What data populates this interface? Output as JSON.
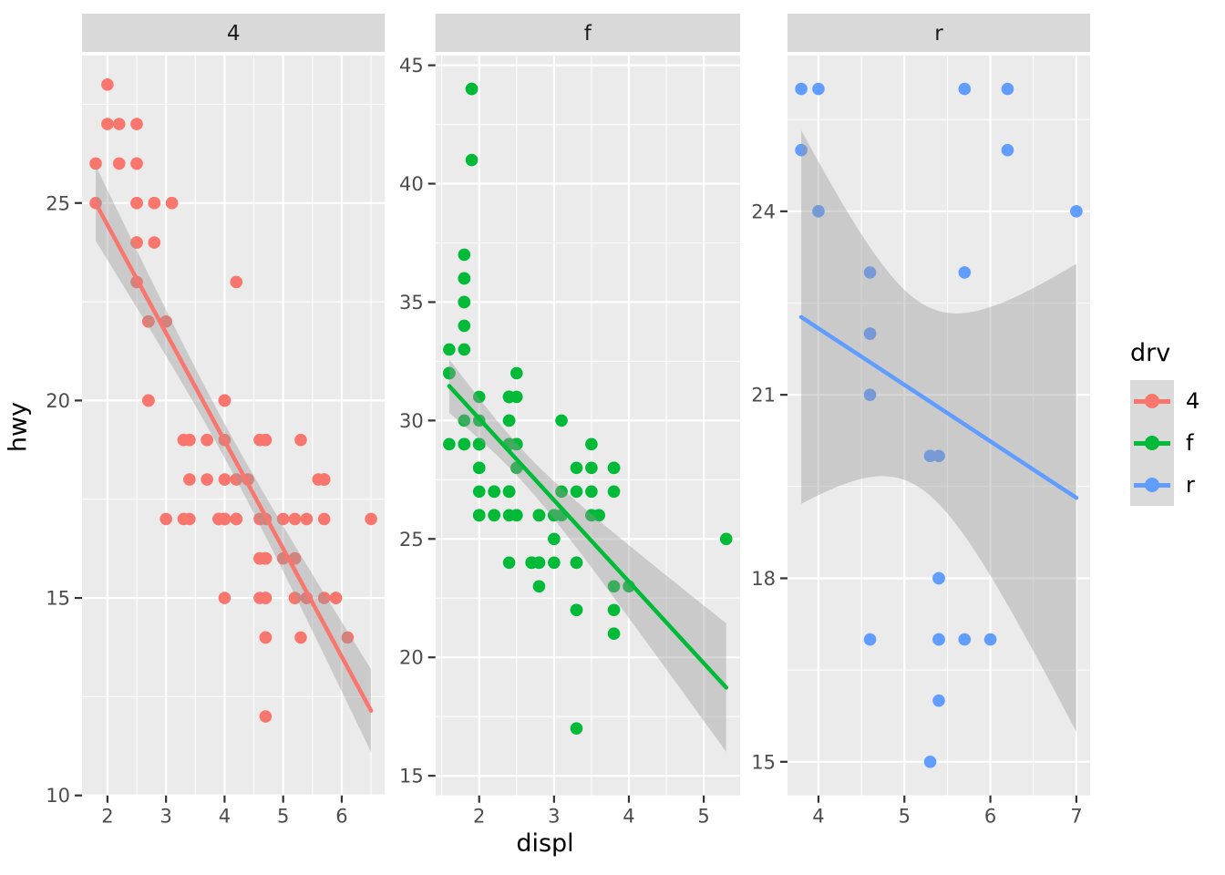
{
  "chart_data": {
    "type": "scatter",
    "description": "ggplot2 faceted scatterplot of engine displacement vs highway mpg with linear smooth and 95% confidence ribbon, faceted by drive type with free scales",
    "xlabel": "displ",
    "ylabel": "hwy",
    "facet_variable": "drv",
    "legend": {
      "title": "drv",
      "position": "right",
      "items": [
        {
          "label": "4",
          "color": "#F8766D"
        },
        {
          "label": "f",
          "color": "#00BA38"
        },
        {
          "label": "r",
          "color": "#619CFF"
        }
      ]
    },
    "theme": {
      "panel_bg": "#EBEBEB",
      "strip_bg": "#D9D9D9",
      "grid_color": "#FFFFFF",
      "ribbon_color": "#999999",
      "ribbon_opacity": 0.4,
      "tick_label_color": "#4D4D4D",
      "strip_text_color": "#1A1A1A",
      "tick_mark_color": "#333333",
      "grid": true
    },
    "facets": [
      {
        "label": "4",
        "color": "#F8766D",
        "smooth": "lm",
        "xlim": [
          1.566,
          6.737
        ],
        "ylim": [
          10.0,
          28.74
        ],
        "xticks": [
          2,
          3,
          4,
          5,
          6
        ],
        "yticks": [
          10,
          15,
          20,
          25
        ],
        "points": [
          [
            1.8,
            26
          ],
          [
            1.8,
            25
          ],
          [
            2.0,
            28
          ],
          [
            2.0,
            27
          ],
          [
            2.8,
            25
          ],
          [
            2.8,
            25
          ],
          [
            3.1,
            25
          ],
          [
            2.8,
            24
          ],
          [
            3.1,
            25
          ],
          [
            4.2,
            23
          ],
          [
            5.3,
            19
          ],
          [
            5.3,
            14
          ],
          [
            5.7,
            15
          ],
          [
            6.5,
            17
          ],
          [
            3.7,
            19
          ],
          [
            3.7,
            18
          ],
          [
            3.9,
            17
          ],
          [
            3.9,
            17
          ],
          [
            4.7,
            16
          ],
          [
            4.7,
            16
          ],
          [
            4.7,
            15
          ],
          [
            5.2,
            17
          ],
          [
            5.2,
            15
          ],
          [
            3.9,
            17
          ],
          [
            4.7,
            16
          ],
          [
            4.7,
            16
          ],
          [
            4.7,
            16
          ],
          [
            5.2,
            16
          ],
          [
            5.7,
            18
          ],
          [
            5.9,
            15
          ],
          [
            4.7,
            15
          ],
          [
            4.7,
            16
          ],
          [
            4.7,
            16
          ],
          [
            4.7,
            16
          ],
          [
            4.7,
            14
          ],
          [
            4.7,
            14
          ],
          [
            5.2,
            15
          ],
          [
            5.2,
            16
          ],
          [
            5.7,
            17
          ],
          [
            5.9,
            15
          ],
          [
            4.0,
            17
          ],
          [
            4.0,
            17
          ],
          [
            4.0,
            17
          ],
          [
            4.0,
            17
          ],
          [
            4.6,
            16
          ],
          [
            5.0,
            16
          ],
          [
            4.2,
            17
          ],
          [
            4.2,
            17
          ],
          [
            4.6,
            16
          ],
          [
            4.6,
            16
          ],
          [
            4.6,
            17
          ],
          [
            5.4,
            17
          ],
          [
            3.0,
            17
          ],
          [
            3.7,
            19
          ],
          [
            4.0,
            18
          ],
          [
            4.7,
            19
          ],
          [
            4.7,
            19
          ],
          [
            4.7,
            12
          ],
          [
            5.7,
            18
          ],
          [
            6.1,
            14
          ],
          [
            4.0,
            15
          ],
          [
            4.2,
            18
          ],
          [
            4.4,
            18
          ],
          [
            4.6,
            15
          ],
          [
            4.0,
            17
          ],
          [
            4.0,
            19
          ],
          [
            4.6,
            19
          ],
          [
            5.0,
            17
          ],
          [
            3.3,
            17
          ],
          [
            3.3,
            19
          ],
          [
            4.0,
            20
          ],
          [
            5.6,
            18
          ],
          [
            2.5,
            25
          ],
          [
            2.5,
            24
          ],
          [
            2.5,
            27
          ],
          [
            2.5,
            25
          ],
          [
            2.5,
            26
          ],
          [
            2.5,
            23
          ],
          [
            2.2,
            26
          ],
          [
            2.2,
            27
          ],
          [
            2.5,
            26
          ],
          [
            2.5,
            25
          ],
          [
            2.5,
            24
          ],
          [
            2.5,
            23
          ],
          [
            2.7,
            20
          ],
          [
            2.7,
            20
          ],
          [
            2.7,
            22
          ],
          [
            3.4,
            17
          ],
          [
            3.4,
            19
          ],
          [
            4.0,
            20
          ],
          [
            4.7,
            17
          ],
          [
            4.7,
            16
          ],
          [
            5.7,
            18
          ],
          [
            2.7,
            20
          ],
          [
            2.7,
            22
          ],
          [
            2.7,
            22
          ],
          [
            3.4,
            19
          ],
          [
            3.4,
            18
          ],
          [
            4.0,
            20
          ],
          [
            4.0,
            20
          ],
          [
            5.4,
            15
          ],
          [
            3.0,
            22
          ]
        ]
      },
      {
        "label": "f",
        "color": "#00BA38",
        "smooth": "lm",
        "xlim": [
          1.415,
          5.486
        ],
        "ylim": [
          14.17,
          45.42
        ],
        "xticks": [
          2,
          3,
          4,
          5
        ],
        "yticks": [
          15,
          20,
          25,
          30,
          35,
          40,
          45
        ],
        "points": [
          [
            1.8,
            29
          ],
          [
            1.8,
            29
          ],
          [
            2.0,
            31
          ],
          [
            2.0,
            30
          ],
          [
            2.8,
            26
          ],
          [
            2.8,
            26
          ],
          [
            3.1,
            27
          ],
          [
            2.4,
            29
          ],
          [
            2.4,
            27
          ],
          [
            3.1,
            26
          ],
          [
            3.5,
            29
          ],
          [
            3.6,
            26
          ],
          [
            2.4,
            24
          ],
          [
            3.0,
            24
          ],
          [
            3.3,
            22
          ],
          [
            3.3,
            22
          ],
          [
            3.3,
            24
          ],
          [
            3.3,
            24
          ],
          [
            3.3,
            17
          ],
          [
            3.8,
            22
          ],
          [
            3.8,
            21
          ],
          [
            3.8,
            23
          ],
          [
            4.0,
            23
          ],
          [
            1.6,
            33
          ],
          [
            1.6,
            32
          ],
          [
            1.6,
            32
          ],
          [
            1.6,
            29
          ],
          [
            1.6,
            32
          ],
          [
            1.8,
            34
          ],
          [
            1.8,
            36
          ],
          [
            1.8,
            36
          ],
          [
            2.0,
            29
          ],
          [
            2.4,
            26
          ],
          [
            2.4,
            27
          ],
          [
            2.4,
            30
          ],
          [
            2.4,
            31
          ],
          [
            2.5,
            26
          ],
          [
            2.5,
            26
          ],
          [
            3.3,
            28
          ],
          [
            2.0,
            26
          ],
          [
            2.0,
            29
          ],
          [
            2.0,
            28
          ],
          [
            2.0,
            27
          ],
          [
            2.7,
            24
          ],
          [
            2.7,
            24
          ],
          [
            2.7,
            24
          ],
          [
            2.4,
            29
          ],
          [
            2.4,
            27
          ],
          [
            2.5,
            31
          ],
          [
            2.5,
            32
          ],
          [
            3.5,
            27
          ],
          [
            3.5,
            26
          ],
          [
            3.0,
            26
          ],
          [
            3.0,
            25
          ],
          [
            3.5,
            26
          ],
          [
            3.1,
            30
          ],
          [
            3.8,
            28
          ],
          [
            3.8,
            28
          ],
          [
            3.8,
            27
          ],
          [
            5.3,
            25
          ],
          [
            2.2,
            26
          ],
          [
            2.2,
            27
          ],
          [
            2.4,
            30
          ],
          [
            2.4,
            31
          ],
          [
            3.0,
            26
          ],
          [
            3.0,
            26
          ],
          [
            3.5,
            28
          ],
          [
            2.2,
            26
          ],
          [
            2.2,
            27
          ],
          [
            2.4,
            31
          ],
          [
            2.4,
            31
          ],
          [
            3.0,
            26
          ],
          [
            3.3,
            27
          ],
          [
            1.8,
            30
          ],
          [
            1.8,
            33
          ],
          [
            1.8,
            35
          ],
          [
            1.8,
            37
          ],
          [
            1.8,
            35
          ],
          [
            2.0,
            29
          ],
          [
            2.0,
            26
          ],
          [
            2.0,
            29
          ],
          [
            2.0,
            29
          ],
          [
            2.8,
            24
          ],
          [
            1.9,
            44
          ],
          [
            2.0,
            29
          ],
          [
            2.0,
            26
          ],
          [
            2.0,
            29
          ],
          [
            2.0,
            29
          ],
          [
            2.5,
            29
          ],
          [
            2.5,
            29
          ],
          [
            2.8,
            24
          ],
          [
            2.8,
            23
          ],
          [
            1.9,
            44
          ],
          [
            1.9,
            41
          ],
          [
            2.0,
            29
          ],
          [
            2.0,
            26
          ],
          [
            2.5,
            28
          ],
          [
            2.5,
            29
          ],
          [
            1.8,
            29
          ],
          [
            1.8,
            29
          ],
          [
            2.0,
            28
          ],
          [
            2.0,
            29
          ],
          [
            2.8,
            26
          ],
          [
            2.8,
            26
          ],
          [
            3.6,
            26
          ]
        ]
      },
      {
        "label": "r",
        "color": "#619CFF",
        "smooth": "lm",
        "xlim": [
          3.64,
          7.16
        ],
        "ylim": [
          14.45,
          26.55
        ],
        "xticks": [
          4,
          5,
          6,
          7
        ],
        "yticks": [
          15,
          18,
          21,
          24
        ],
        "points": [
          [
            3.8,
            26
          ],
          [
            3.8,
            25
          ],
          [
            4.0,
            26
          ],
          [
            4.0,
            24
          ],
          [
            4.6,
            21
          ],
          [
            4.6,
            22
          ],
          [
            4.6,
            23
          ],
          [
            4.6,
            22
          ],
          [
            5.4,
            20
          ],
          [
            5.3,
            20
          ],
          [
            5.3,
            15
          ],
          [
            5.3,
            20
          ],
          [
            5.7,
            17
          ],
          [
            6.0,
            17
          ],
          [
            5.7,
            26
          ],
          [
            5.7,
            23
          ],
          [
            6.2,
            26
          ],
          [
            6.2,
            25
          ],
          [
            7.0,
            24
          ],
          [
            4.6,
            17
          ],
          [
            5.4,
            17
          ],
          [
            5.4,
            18
          ],
          [
            5.4,
            17
          ],
          [
            5.4,
            16
          ],
          [
            5.4,
            18
          ]
        ]
      }
    ]
  }
}
